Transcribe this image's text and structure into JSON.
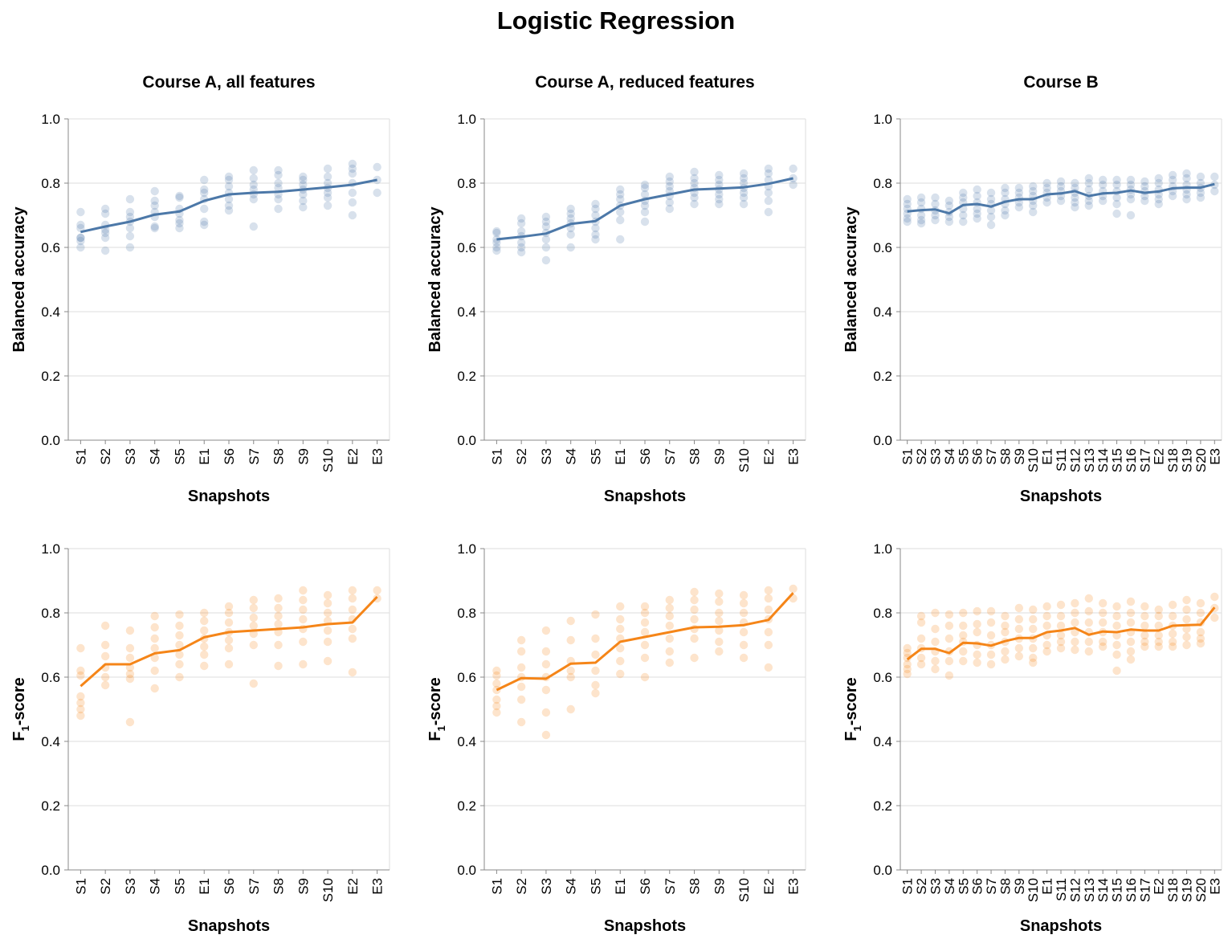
{
  "title": "Logistic Regression",
  "colors": {
    "accuracy": "#4c78a8",
    "f1": "#f58518"
  },
  "rows": [
    {
      "metric": "accuracy",
      "ylabel": "Balanced accuracy",
      "ylabel_main": "Balanced accuracy",
      "ylabel_sub": ""
    },
    {
      "metric": "f1",
      "ylabel": "F1-score",
      "ylabel_main": "F",
      "ylabel_sub": "1",
      "ylabel_rest": "-score"
    }
  ],
  "columns": [
    {
      "title": "Course A, all features",
      "xlabel": "Snapshots"
    },
    {
      "title": "Course A, reduced features",
      "xlabel": "Snapshots"
    },
    {
      "title": "Course B",
      "xlabel": "Snapshots"
    }
  ],
  "y_ticks": [
    "0.0",
    "0.2",
    "0.4",
    "0.6",
    "0.8",
    "1.0"
  ],
  "chart_data": [
    {
      "type": "line",
      "panel": "Course A, all features",
      "metric": "Balanced accuracy",
      "title": "Course A, all features",
      "xlabel": "Snapshots",
      "ylabel": "Balanced accuracy",
      "ylim": [
        0,
        1
      ],
      "grid": true,
      "categories": [
        "S1",
        "S2",
        "S3",
        "S4",
        "S5",
        "E1",
        "S6",
        "S7",
        "S8",
        "S9",
        "S10",
        "E2",
        "E3"
      ],
      "mean": [
        0.648,
        0.665,
        0.68,
        0.702,
        0.712,
        0.745,
        0.765,
        0.77,
        0.773,
        0.78,
        0.787,
        0.795,
        0.81
      ],
      "points": [
        [
          0.71,
          0.67,
          0.66,
          0.63,
          0.62,
          0.6,
          0.63
        ],
        [
          0.72,
          0.705,
          0.67,
          0.655,
          0.645,
          0.63,
          0.59
        ],
        [
          0.75,
          0.71,
          0.695,
          0.68,
          0.66,
          0.635,
          0.6
        ],
        [
          0.775,
          0.745,
          0.73,
          0.71,
          0.695,
          0.665,
          0.66
        ],
        [
          0.76,
          0.755,
          0.72,
          0.705,
          0.685,
          0.675,
          0.66
        ],
        [
          0.81,
          0.78,
          0.77,
          0.75,
          0.72,
          0.68,
          0.67
        ],
        [
          0.82,
          0.81,
          0.79,
          0.77,
          0.75,
          0.73,
          0.715
        ],
        [
          0.84,
          0.815,
          0.795,
          0.78,
          0.765,
          0.75,
          0.665
        ],
        [
          0.84,
          0.825,
          0.8,
          0.785,
          0.765,
          0.75,
          0.72
        ],
        [
          0.82,
          0.81,
          0.795,
          0.78,
          0.765,
          0.745,
          0.725
        ],
        [
          0.845,
          0.82,
          0.8,
          0.785,
          0.77,
          0.755,
          0.73
        ],
        [
          0.86,
          0.845,
          0.83,
          0.8,
          0.77,
          0.74,
          0.7
        ],
        [
          0.85,
          0.81,
          0.77
        ]
      ]
    },
    {
      "type": "line",
      "panel": "Course A, reduced features",
      "metric": "Balanced accuracy",
      "title": "Course A, reduced features",
      "xlabel": "Snapshots",
      "ylabel": "Balanced accuracy",
      "ylim": [
        0,
        1
      ],
      "grid": true,
      "categories": [
        "S1",
        "S2",
        "S3",
        "S4",
        "S5",
        "E1",
        "S6",
        "S7",
        "S8",
        "S9",
        "S10",
        "E2",
        "E3"
      ],
      "mean": [
        0.625,
        0.633,
        0.643,
        0.673,
        0.682,
        0.73,
        0.75,
        0.765,
        0.78,
        0.783,
        0.787,
        0.798,
        0.815
      ],
      "points": [
        [
          0.65,
          0.645,
          0.625,
          0.615,
          0.6,
          0.59
        ],
        [
          0.69,
          0.675,
          0.65,
          0.635,
          0.615,
          0.6,
          0.585
        ],
        [
          0.695,
          0.68,
          0.665,
          0.645,
          0.625,
          0.6,
          0.56
        ],
        [
          0.72,
          0.705,
          0.69,
          0.675,
          0.66,
          0.64,
          0.6
        ],
        [
          0.735,
          0.72,
          0.7,
          0.68,
          0.66,
          0.64,
          0.625
        ],
        [
          0.78,
          0.765,
          0.75,
          0.73,
          0.71,
          0.685,
          0.625
        ],
        [
          0.795,
          0.785,
          0.765,
          0.745,
          0.73,
          0.71,
          0.68
        ],
        [
          0.82,
          0.805,
          0.79,
          0.775,
          0.76,
          0.74,
          0.72
        ],
        [
          0.835,
          0.815,
          0.8,
          0.785,
          0.77,
          0.755,
          0.735
        ],
        [
          0.825,
          0.81,
          0.795,
          0.78,
          0.765,
          0.75,
          0.735
        ],
        [
          0.83,
          0.815,
          0.8,
          0.785,
          0.77,
          0.755,
          0.735
        ],
        [
          0.845,
          0.83,
          0.81,
          0.79,
          0.77,
          0.745,
          0.71
        ],
        [
          0.845,
          0.815,
          0.795
        ]
      ]
    },
    {
      "type": "line",
      "panel": "Course B",
      "metric": "Balanced accuracy",
      "title": "Course B",
      "xlabel": "Snapshots",
      "ylabel": "Balanced accuracy",
      "ylim": [
        0,
        1
      ],
      "grid": true,
      "categories": [
        "S1",
        "S2",
        "S3",
        "S4",
        "S5",
        "S6",
        "S7",
        "S8",
        "S9",
        "S10",
        "E1",
        "S11",
        "S12",
        "S13",
        "S14",
        "S15",
        "S16",
        "S17",
        "E2",
        "S18",
        "S19",
        "S20",
        "E3"
      ],
      "mean": [
        0.712,
        0.716,
        0.718,
        0.706,
        0.732,
        0.735,
        0.727,
        0.742,
        0.75,
        0.75,
        0.765,
        0.768,
        0.775,
        0.76,
        0.768,
        0.77,
        0.777,
        0.77,
        0.774,
        0.784,
        0.786,
        0.786,
        0.797
      ],
      "points": [
        [
          0.75,
          0.735,
          0.72,
          0.705,
          0.69,
          0.68
        ],
        [
          0.755,
          0.74,
          0.72,
          0.7,
          0.685,
          0.675
        ],
        [
          0.755,
          0.735,
          0.715,
          0.7,
          0.685
        ],
        [
          0.745,
          0.73,
          0.71,
          0.695,
          0.68
        ],
        [
          0.77,
          0.755,
          0.74,
          0.72,
          0.7,
          0.68
        ],
        [
          0.78,
          0.76,
          0.74,
          0.72,
          0.705,
          0.69
        ],
        [
          0.77,
          0.75,
          0.735,
          0.715,
          0.695,
          0.67
        ],
        [
          0.785,
          0.77,
          0.75,
          0.735,
          0.715,
          0.7
        ],
        [
          0.785,
          0.77,
          0.755,
          0.74,
          0.725
        ],
        [
          0.79,
          0.775,
          0.76,
          0.745,
          0.73,
          0.71
        ],
        [
          0.8,
          0.785,
          0.77,
          0.755,
          0.74
        ],
        [
          0.805,
          0.79,
          0.775,
          0.76,
          0.745
        ],
        [
          0.8,
          0.785,
          0.77,
          0.755,
          0.74,
          0.725
        ],
        [
          0.815,
          0.8,
          0.78,
          0.76,
          0.745,
          0.73
        ],
        [
          0.81,
          0.795,
          0.775,
          0.76,
          0.745
        ],
        [
          0.81,
          0.795,
          0.775,
          0.755,
          0.735,
          0.705
        ],
        [
          0.81,
          0.795,
          0.78,
          0.765,
          0.75,
          0.7
        ],
        [
          0.805,
          0.79,
          0.775,
          0.76,
          0.745
        ],
        [
          0.815,
          0.8,
          0.78,
          0.765,
          0.75,
          0.735
        ],
        [
          0.825,
          0.81,
          0.79,
          0.775,
          0.76
        ],
        [
          0.83,
          0.815,
          0.795,
          0.78,
          0.765,
          0.75
        ],
        [
          0.82,
          0.8,
          0.785,
          0.77,
          0.755
        ],
        [
          0.82,
          0.795,
          0.775
        ]
      ]
    },
    {
      "type": "line",
      "panel": "Course A, all features",
      "metric": "F1-score",
      "title": "Course A, all features",
      "xlabel": "Snapshots",
      "ylabel": "F1-score",
      "ylim": [
        0,
        1
      ],
      "grid": true,
      "categories": [
        "S1",
        "S2",
        "S3",
        "S4",
        "S5",
        "E1",
        "S6",
        "S7",
        "S8",
        "S9",
        "S10",
        "E2",
        "E3"
      ],
      "mean": [
        0.572,
        0.64,
        0.64,
        0.674,
        0.684,
        0.724,
        0.74,
        0.745,
        0.75,
        0.755,
        0.765,
        0.77,
        0.85
      ],
      "points": [
        [
          0.69,
          0.62,
          0.605,
          0.54,
          0.52,
          0.5,
          0.48
        ],
        [
          0.76,
          0.7,
          0.665,
          0.63,
          0.6,
          0.575
        ],
        [
          0.745,
          0.69,
          0.66,
          0.63,
          0.61,
          0.595,
          0.46
        ],
        [
          0.79,
          0.755,
          0.72,
          0.69,
          0.66,
          0.62,
          0.565
        ],
        [
          0.795,
          0.76,
          0.73,
          0.7,
          0.67,
          0.64,
          0.6
        ],
        [
          0.8,
          0.775,
          0.745,
          0.72,
          0.695,
          0.67,
          0.635
        ],
        [
          0.82,
          0.8,
          0.77,
          0.74,
          0.715,
          0.69,
          0.64
        ],
        [
          0.84,
          0.815,
          0.785,
          0.76,
          0.735,
          0.7,
          0.58
        ],
        [
          0.845,
          0.815,
          0.79,
          0.765,
          0.74,
          0.7,
          0.635
        ],
        [
          0.87,
          0.84,
          0.81,
          0.78,
          0.75,
          0.71,
          0.64
        ],
        [
          0.855,
          0.83,
          0.8,
          0.775,
          0.745,
          0.71,
          0.65
        ],
        [
          0.87,
          0.845,
          0.81,
          0.78,
          0.75,
          0.72,
          0.615
        ],
        [
          0.87,
          0.845
        ]
      ]
    },
    {
      "type": "line",
      "panel": "Course A, reduced features",
      "metric": "F1-score",
      "title": "Course A, reduced features",
      "xlabel": "Snapshots",
      "ylabel": "F1-score",
      "ylim": [
        0,
        1
      ],
      "grid": true,
      "categories": [
        "S1",
        "S2",
        "S3",
        "S4",
        "S5",
        "E1",
        "S6",
        "S7",
        "S8",
        "S9",
        "S10",
        "E2",
        "E3"
      ],
      "mean": [
        0.56,
        0.597,
        0.595,
        0.642,
        0.645,
        0.71,
        0.725,
        0.74,
        0.755,
        0.757,
        0.762,
        0.778,
        0.862
      ],
      "points": [
        [
          0.62,
          0.605,
          0.58,
          0.56,
          0.53,
          0.51,
          0.49
        ],
        [
          0.715,
          0.68,
          0.63,
          0.6,
          0.57,
          0.53,
          0.46
        ],
        [
          0.745,
          0.68,
          0.64,
          0.6,
          0.56,
          0.49,
          0.42
        ],
        [
          0.775,
          0.715,
          0.65,
          0.62,
          0.6,
          0.5
        ],
        [
          0.795,
          0.72,
          0.67,
          0.62,
          0.575,
          0.55
        ],
        [
          0.82,
          0.78,
          0.75,
          0.72,
          0.69,
          0.65,
          0.61
        ],
        [
          0.82,
          0.8,
          0.77,
          0.74,
          0.7,
          0.66,
          0.6
        ],
        [
          0.84,
          0.815,
          0.79,
          0.76,
          0.72,
          0.68,
          0.645
        ],
        [
          0.865,
          0.84,
          0.81,
          0.78,
          0.75,
          0.72,
          0.66
        ],
        [
          0.86,
          0.835,
          0.8,
          0.775,
          0.745,
          0.71,
          0.68
        ],
        [
          0.855,
          0.83,
          0.8,
          0.77,
          0.74,
          0.7,
          0.66
        ],
        [
          0.87,
          0.845,
          0.81,
          0.78,
          0.74,
          0.7,
          0.63
        ],
        [
          0.875,
          0.845
        ]
      ]
    },
    {
      "type": "line",
      "panel": "Course B",
      "metric": "F1-score",
      "title": "Course B",
      "xlabel": "Snapshots",
      "ylabel": "F1-score",
      "ylim": [
        0,
        1
      ],
      "grid": true,
      "categories": [
        "S1",
        "S2",
        "S3",
        "S4",
        "S5",
        "S6",
        "S7",
        "S8",
        "S9",
        "S10",
        "E1",
        "S11",
        "S12",
        "S13",
        "S14",
        "S15",
        "S16",
        "S17",
        "E2",
        "S18",
        "S19",
        "S20",
        "E3"
      ],
      "mean": [
        0.655,
        0.688,
        0.688,
        0.675,
        0.707,
        0.705,
        0.698,
        0.712,
        0.722,
        0.722,
        0.74,
        0.745,
        0.753,
        0.732,
        0.742,
        0.74,
        0.748,
        0.745,
        0.745,
        0.76,
        0.762,
        0.763,
        0.817
      ],
      "points": [
        [
          0.69,
          0.675,
          0.66,
          0.64,
          0.625,
          0.61
        ],
        [
          0.79,
          0.77,
          0.72,
          0.69,
          0.66,
          0.64
        ],
        [
          0.8,
          0.75,
          0.71,
          0.68,
          0.65,
          0.625
        ],
        [
          0.795,
          0.76,
          0.72,
          0.68,
          0.65,
          0.605
        ],
        [
          0.8,
          0.76,
          0.73,
          0.71,
          0.68,
          0.65
        ],
        [
          0.805,
          0.765,
          0.74,
          0.7,
          0.67,
          0.645
        ],
        [
          0.805,
          0.77,
          0.73,
          0.7,
          0.67,
          0.64
        ],
        [
          0.79,
          0.76,
          0.74,
          0.71,
          0.68,
          0.655
        ],
        [
          0.815,
          0.78,
          0.75,
          0.72,
          0.69,
          0.665
        ],
        [
          0.81,
          0.78,
          0.75,
          0.72,
          0.69,
          0.66,
          0.645
        ],
        [
          0.82,
          0.79,
          0.76,
          0.73,
          0.7,
          0.68
        ],
        [
          0.825,
          0.79,
          0.76,
          0.73,
          0.71,
          0.69
        ],
        [
          0.83,
          0.8,
          0.77,
          0.74,
          0.71,
          0.685
        ],
        [
          0.845,
          0.805,
          0.77,
          0.74,
          0.71,
          0.68
        ],
        [
          0.83,
          0.8,
          0.77,
          0.74,
          0.71,
          0.695
        ],
        [
          0.82,
          0.79,
          0.76,
          0.73,
          0.7,
          0.67,
          0.62
        ],
        [
          0.835,
          0.8,
          0.77,
          0.74,
          0.71,
          0.68,
          0.655
        ],
        [
          0.82,
          0.79,
          0.76,
          0.73,
          0.71,
          0.695
        ],
        [
          0.81,
          0.79,
          0.76,
          0.73,
          0.71,
          0.695
        ],
        [
          0.825,
          0.79,
          0.76,
          0.735,
          0.71,
          0.695
        ],
        [
          0.84,
          0.81,
          0.78,
          0.75,
          0.725,
          0.7
        ],
        [
          0.83,
          0.8,
          0.77,
          0.74,
          0.72,
          0.705
        ],
        [
          0.85,
          0.815,
          0.785
        ]
      ]
    }
  ]
}
